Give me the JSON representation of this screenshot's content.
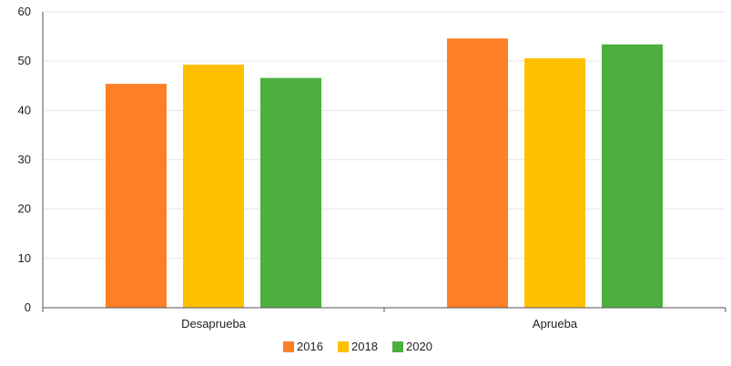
{
  "chart_data": {
    "type": "bar",
    "categories": [
      "Desaprueba",
      "Aprueba"
    ],
    "series": [
      {
        "name": "2016",
        "color": "#FF7F27",
        "values": [
          45.4,
          54.6
        ]
      },
      {
        "name": "2018",
        "color": "#FFC000",
        "values": [
          49.3,
          50.6
        ]
      },
      {
        "name": "2020",
        "color": "#4CAF3F",
        "values": [
          46.6,
          53.4
        ]
      }
    ],
    "ylim": [
      0,
      60
    ],
    "yticks": [
      0,
      10,
      20,
      30,
      40,
      50,
      60
    ],
    "grid": true,
    "legend_position": "bottom-center",
    "axis_color": "#555555",
    "grid_color": "#E6E6E6"
  }
}
